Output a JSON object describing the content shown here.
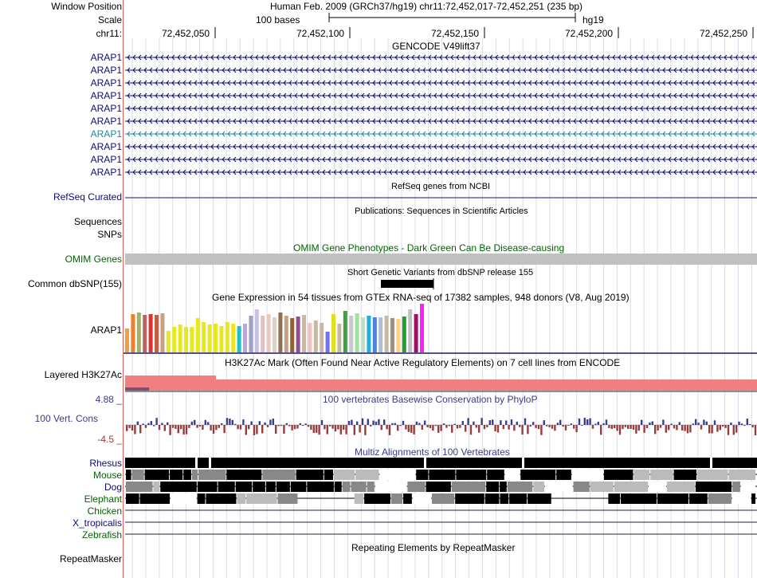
{
  "position": {
    "window_label": "Window Position",
    "scale_label": "Scale",
    "chrom_label": "chr11:",
    "assembly_text": "Human Feb. 2009 (GRCh37/hg19)   chr11:72,452,017-72,452,251 (235 bp)",
    "scale_text": "100 bases",
    "db_text": "hg19",
    "ticks": [
      "72,452,050",
      "72,452,100",
      "72,452,150",
      "72,452,200",
      "72,452,250"
    ]
  },
  "gencode": {
    "title": "GENCODE V49lift37",
    "genes": [
      "ARAP1",
      "ARAP1",
      "ARAP1",
      "ARAP1",
      "ARAP1",
      "ARAP1",
      "ARAP1",
      "ARAP1",
      "ARAP1",
      "ARAP1"
    ]
  },
  "refseq": {
    "label": "RefSeq Curated",
    "title": "RefSeq genes from NCBI"
  },
  "publications": {
    "label1": "Sequences",
    "label2": "SNPs",
    "title": "Publications: Sequences in Scientific Articles"
  },
  "omim": {
    "label": "OMIM Genes",
    "title": "OMIM Gene Phenotypes - Dark Green Can Be Disease-causing"
  },
  "dbsnp": {
    "label": "Common dbSNP(155)",
    "title": "Short Genetic Variants from dbSNP release 155"
  },
  "gtex": {
    "label": "ARAP1",
    "title": "Gene Expression in 54 tissues from GTEx RNA-seq of 17382 samples, 948 donors (V8, Aug 2019)"
  },
  "h3k27ac": {
    "label": "Layered H3K27Ac",
    "title": "H3K27Ac Mark (Often Found Near Active Regulatory Elements) on 7 cell lines from ENCODE"
  },
  "phylop": {
    "label": "100 Vert. Cons",
    "max": "4.88 _",
    "min": "-4.5 _",
    "title": "100 vertebrates Basewise Conservation by PhyloP"
  },
  "multiz": {
    "title": "Multiz Alignments of 100 Vertebrates",
    "species": [
      "Rhesus",
      "Mouse",
      "Dog",
      "Elephant",
      "Chicken",
      "X_tropicalis",
      "Zebrafish"
    ]
  },
  "repeatmasker": {
    "label": "RepeatMasker",
    "title": "Repeating Elements by RepeatMasker"
  },
  "colors": {
    "navy": "#0c0c78",
    "green": "#006400",
    "h3k27ac": "#f08080",
    "phylop_pos": "#3b3b8f",
    "phylop_neg": "#9b3a3a",
    "omim_bar": "#c0c0c0"
  }
}
